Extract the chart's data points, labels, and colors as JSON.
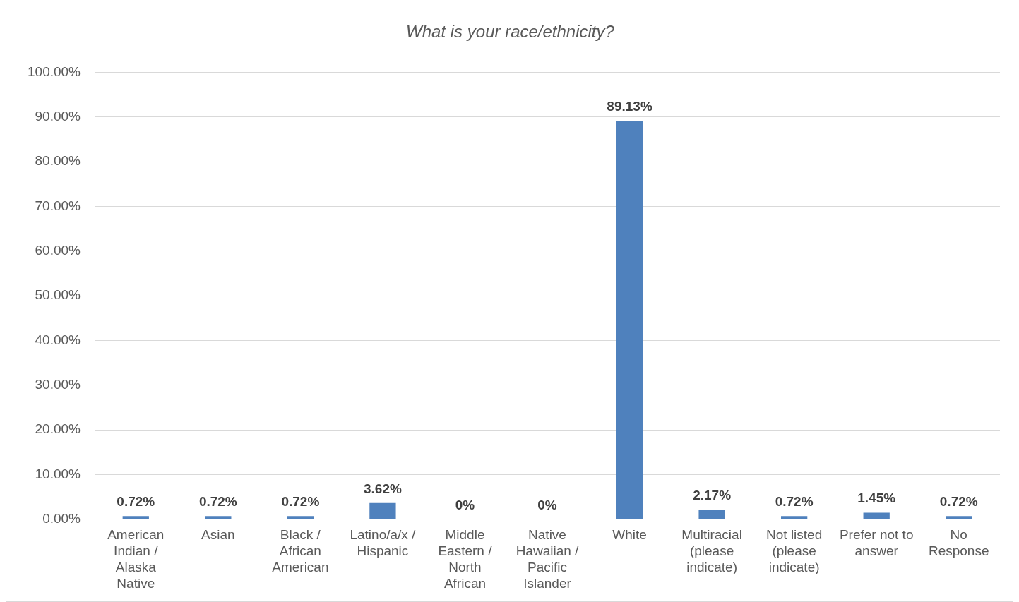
{
  "chart_data": {
    "type": "bar",
    "title": "What is your race/ethnicity?",
    "categories": [
      "American Indian / Alaska Native",
      "Asian",
      "Black / African American",
      "Latino/a/x / Hispanic",
      "Middle Eastern / North African",
      "Native Hawaiian / Pacific Islander",
      "White",
      "Multiracial (please indicate)",
      "Not listed (please indicate)",
      "Prefer not to answer",
      "No Response"
    ],
    "values": [
      0.72,
      0.72,
      0.72,
      3.62,
      0,
      0,
      89.13,
      2.17,
      0.72,
      1.45,
      0.72
    ],
    "value_labels": [
      "0.72%",
      "0.72%",
      "0.72%",
      "3.62%",
      "0%",
      "0%",
      "89.13%",
      "2.17%",
      "0.72%",
      "1.45%",
      "0.72%"
    ],
    "color": "#4f81bd",
    "ylim": [
      0,
      100
    ],
    "yticks": [
      {
        "value": 0,
        "label": "0.00%"
      },
      {
        "value": 10,
        "label": "10.00%"
      },
      {
        "value": 20,
        "label": "20.00%"
      },
      {
        "value": 30,
        "label": "30.00%"
      },
      {
        "value": 40,
        "label": "40.00%"
      },
      {
        "value": 50,
        "label": "50.00%"
      },
      {
        "value": 60,
        "label": "60.00%"
      },
      {
        "value": 70,
        "label": "70.00%"
      },
      {
        "value": 80,
        "label": "80.00%"
      },
      {
        "value": 90,
        "label": "90.00%"
      },
      {
        "value": 100,
        "label": "100.00%"
      }
    ],
    "grid": "y",
    "legend": false
  }
}
